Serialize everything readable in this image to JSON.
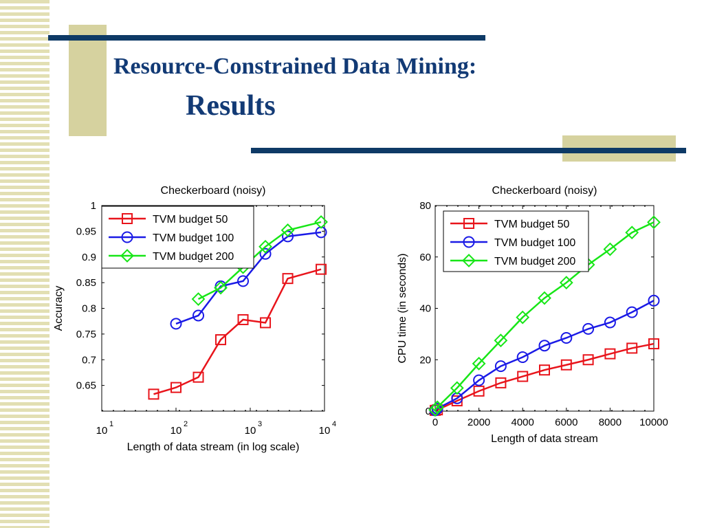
{
  "slide": {
    "title_line1": "Resource-Constrained Data Mining:",
    "title_line2": "Results"
  },
  "chart_data": [
    {
      "type": "line",
      "title": "Checkerboard (noisy)",
      "xlabel": "Length of data stream (in log scale)",
      "ylabel": "Accuracy",
      "xscale": "log",
      "xlim": [
        10,
        10000
      ],
      "ylim": [
        0.6,
        1.0
      ],
      "x_ticks": [
        10,
        100,
        1000,
        10000
      ],
      "x_tick_labels": [
        {
          "base": "10",
          "exp": "1"
        },
        {
          "base": "10",
          "exp": "2"
        },
        {
          "base": "10",
          "exp": "3"
        },
        {
          "base": "10",
          "exp": "4"
        }
      ],
      "y_ticks": [
        0.65,
        0.7,
        0.75,
        0.8,
        0.85,
        0.9,
        0.95,
        1
      ],
      "y_tick_labels": [
        "0.65",
        "0.7",
        "0.75",
        "0.8",
        "0.85",
        "0.9",
        "0.95",
        "1"
      ],
      "legend_position": "top-left",
      "series": [
        {
          "name": "TVM budget 50",
          "color": "#e8141b",
          "marker": "square",
          "x": [
            50,
            100,
            200,
            400,
            800,
            1600,
            3200,
            9000
          ],
          "y": [
            0.633,
            0.646,
            0.666,
            0.739,
            0.778,
            0.772,
            0.858,
            0.876
          ]
        },
        {
          "name": "TVM budget 100",
          "color": "#1a1ae6",
          "marker": "circle",
          "x": [
            100,
            200,
            400,
            800,
            1600,
            3200,
            9000
          ],
          "y": [
            0.77,
            0.786,
            0.843,
            0.853,
            0.906,
            0.94,
            0.948
          ]
        },
        {
          "name": "TVM budget 200",
          "color": "#17e617",
          "marker": "diamond",
          "x": [
            200,
            400,
            800,
            1600,
            3200,
            9000
          ],
          "y": [
            0.818,
            0.84,
            0.88,
            0.92,
            0.952,
            0.968
          ]
        }
      ]
    },
    {
      "type": "line",
      "title": "Checkerboard (noisy)",
      "xlabel": "Length of data stream",
      "ylabel": "CPU time (in seconds)",
      "xscale": "linear",
      "xlim": [
        0,
        10000
      ],
      "ylim": [
        0,
        80
      ],
      "x_ticks": [
        0,
        2000,
        4000,
        6000,
        8000,
        10000
      ],
      "x_tick_labels": [
        "0",
        "2000",
        "4000",
        "6000",
        "8000",
        "10000"
      ],
      "y_ticks": [
        0,
        20,
        40,
        60,
        80
      ],
      "y_tick_labels": [
        "0",
        "20",
        "40",
        "60",
        "80"
      ],
      "legend_position": "top-left",
      "series": [
        {
          "name": "TVM budget 50",
          "color": "#e8141b",
          "marker": "square",
          "x": [
            0,
            100,
            1000,
            2000,
            3000,
            4000,
            5000,
            6000,
            7000,
            8000,
            9000,
            10000
          ],
          "y": [
            0.3,
            0.5,
            4,
            7.8,
            11,
            13.5,
            16,
            18,
            20,
            22.3,
            24.5,
            26.2
          ]
        },
        {
          "name": "TVM budget 100",
          "color": "#1a1ae6",
          "marker": "circle",
          "x": [
            0,
            100,
            1000,
            2000,
            3000,
            4000,
            5000,
            6000,
            7000,
            8000,
            9000,
            10000
          ],
          "y": [
            0.3,
            1,
            5,
            12,
            17.5,
            21,
            25.5,
            28.5,
            32,
            34.5,
            38.5,
            43
          ]
        },
        {
          "name": "TVM budget 200",
          "color": "#17e617",
          "marker": "diamond",
          "x": [
            0,
            100,
            1000,
            2000,
            3000,
            4000,
            5000,
            6000,
            7000,
            8000,
            9000,
            10000
          ],
          "y": [
            0.5,
            1.5,
            9,
            18.5,
            27.5,
            36.5,
            44,
            50,
            57,
            63,
            69.5,
            73.5
          ]
        }
      ]
    }
  ]
}
